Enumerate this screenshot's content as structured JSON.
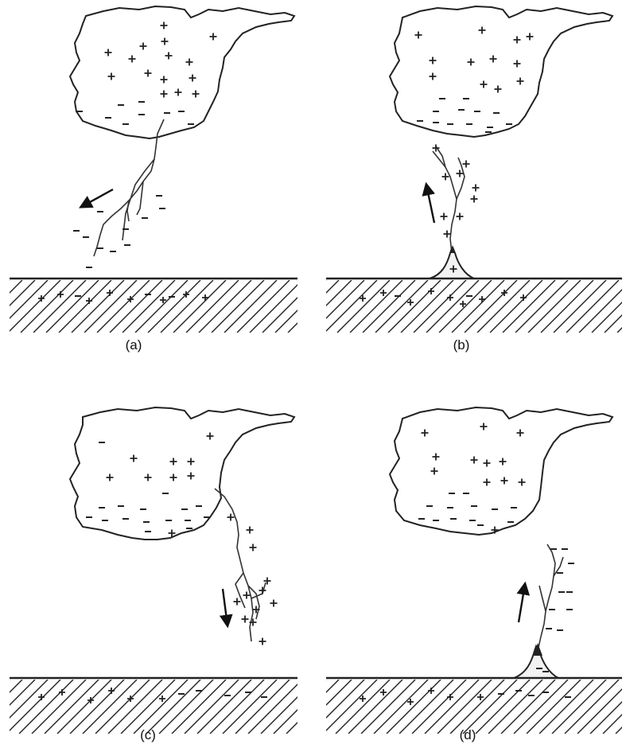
{
  "panels": [
    {
      "label": "(a)",
      "cloud_colors": "#222222"
    },
    {
      "label": "(b)"
    },
    {
      "label": "(c)"
    },
    {
      "label": "(d)"
    }
  ],
  "colors": {
    "ink": "#222222",
    "background": "#ffffff"
  }
}
